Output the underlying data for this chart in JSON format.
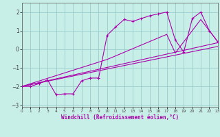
{
  "xlabel": "Windchill (Refroidissement éolien,°C)",
  "bg_color": "#c8eee8",
  "line_color": "#aa00aa",
  "grid_color": "#99cccc",
  "xlim": [
    0,
    23
  ],
  "ylim": [
    -3.1,
    2.5
  ],
  "yticks": [
    -3,
    -2,
    -1,
    0,
    1,
    2
  ],
  "xticks": [
    0,
    1,
    2,
    3,
    4,
    5,
    6,
    7,
    8,
    9,
    10,
    11,
    12,
    13,
    14,
    15,
    16,
    17,
    18,
    19,
    20,
    21,
    22,
    23
  ],
  "main_x": [
    0,
    1,
    2,
    3,
    4,
    5,
    6,
    7,
    8,
    9,
    10,
    11,
    12,
    13,
    14,
    15,
    16,
    17,
    18,
    19,
    20,
    21,
    22,
    23
  ],
  "main_y": [
    -2.0,
    -2.0,
    -1.85,
    -1.65,
    -2.45,
    -2.4,
    -2.4,
    -1.7,
    -1.55,
    -1.55,
    0.75,
    1.2,
    1.6,
    1.5,
    1.65,
    1.8,
    1.9,
    2.0,
    0.5,
    -0.15,
    1.65,
    2.0,
    1.0,
    0.4
  ],
  "smooth_lines": [
    {
      "x": [
        0,
        10,
        17,
        18,
        21,
        23
      ],
      "y": [
        -2.0,
        -0.55,
        0.8,
        -0.2,
        1.6,
        0.4
      ]
    },
    {
      "x": [
        0,
        23
      ],
      "y": [
        -2.0,
        0.35
      ]
    },
    {
      "x": [
        0,
        23
      ],
      "y": [
        -2.0,
        0.15
      ]
    }
  ]
}
